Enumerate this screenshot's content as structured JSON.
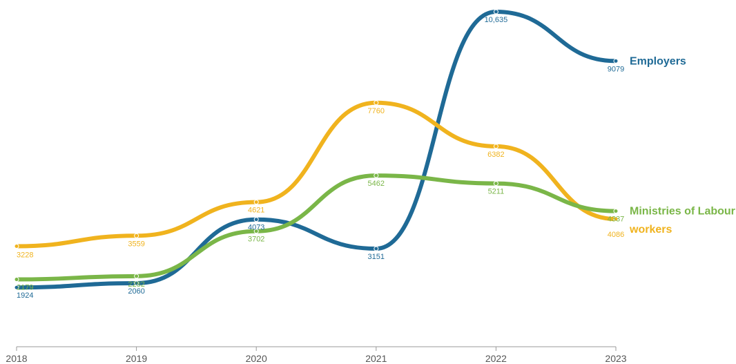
{
  "chart_data": {
    "type": "line",
    "x": [
      2018,
      2019,
      2020,
      2021,
      2022,
      2023
    ],
    "x_tick_labels": [
      "2018",
      "2019",
      "2020",
      "2021",
      "2022",
      "2023"
    ],
    "ylim": [
      0,
      11000
    ],
    "grid": false,
    "legend": "direct labels at line ends",
    "series": [
      {
        "name": "Employers",
        "color": "#1f6a96",
        "values": [
          1924,
          2060,
          4073,
          3151,
          10635,
          9079
        ],
        "labels": [
          "1924",
          "2060",
          "4073",
          "3151",
          "10,635",
          "9079"
        ]
      },
      {
        "name": "workers",
        "color": "#f0b31e",
        "values": [
          3228,
          3559,
          4621,
          7760,
          6382,
          4086
        ],
        "labels": [
          "3228",
          "3559",
          "4621",
          "7760",
          "6382",
          "4086"
        ]
      },
      {
        "name": "Ministries of Labour",
        "color": "#7ab648",
        "values": [
          2179,
          2282,
          3702,
          5462,
          5211,
          4337
        ],
        "labels": [
          "2179",
          "2282",
          "3702",
          "5462",
          "5211",
          "4337"
        ]
      }
    ]
  }
}
